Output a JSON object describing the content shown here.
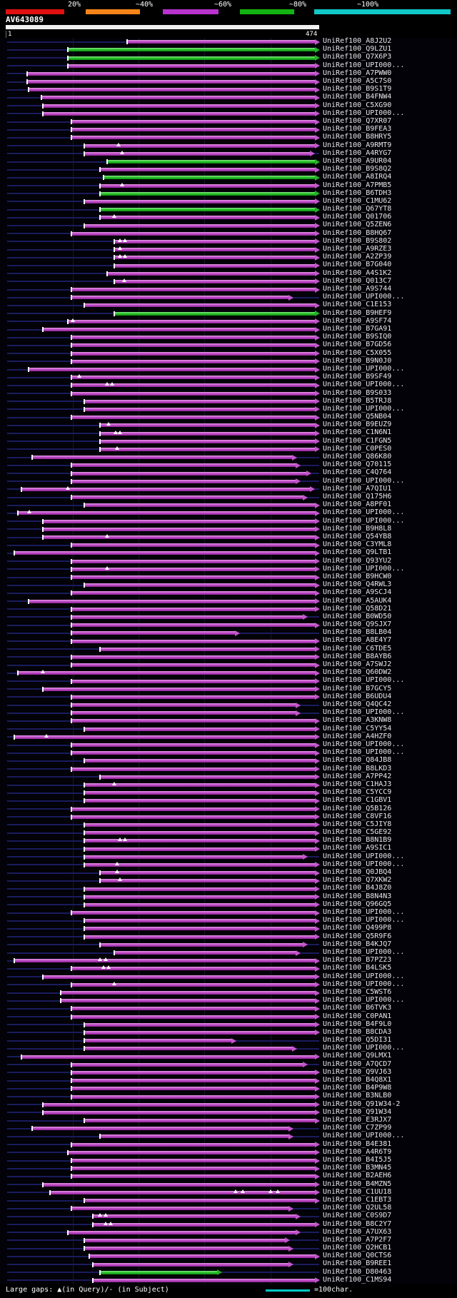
{
  "chart_data": {
    "type": "bar",
    "subtype": "blast-graphical-overview-alignment-spans",
    "title": "AV643089",
    "xlim": [
      1,
      474
    ],
    "x_axis": {
      "start_label": "1",
      "end_label": "474"
    },
    "identity_scale": {
      "labels": [
        "20%",
        "~40%",
        "~60%",
        "~80%",
        "~100%"
      ],
      "colors": [
        "#e01010",
        "#f78418",
        "#b832cc",
        "#12b412",
        "#10c8c8"
      ]
    },
    "bar_colors": {
      "m": "#c455cc",
      "g": "#1fb41f"
    },
    "legend": {
      "large_gaps": "Large gaps: ▲(in Query)/- (in Subject)",
      "scale_marker": "=100char.",
      "scale_marker_color": "#00c8c8"
    },
    "rows": [
      {
        "l": "UniRef100_A8J2U2",
        "s": 183,
        "e": 474,
        "c": "m"
      },
      {
        "l": "UniRef100_Q9LZU1",
        "s": 93,
        "e": 474,
        "c": "g"
      },
      {
        "l": "UniRef100_Q7X6P3",
        "s": 93,
        "e": 474,
        "c": "g"
      },
      {
        "l": "UniRef100_UPI000...",
        "s": 93,
        "e": 474,
        "c": "m"
      },
      {
        "l": "UniRef100_A7PWW0",
        "s": 31,
        "e": 474,
        "c": "m"
      },
      {
        "l": "UniRef100_A5C7S0",
        "s": 31,
        "e": 474,
        "c": "m"
      },
      {
        "l": "UniRef100_B9S1T9",
        "s": 33,
        "e": 474,
        "c": "m"
      },
      {
        "l": "UniRef100_B4FNW4",
        "s": 53,
        "e": 474,
        "c": "m"
      },
      {
        "l": "UniRef100_C5XG90",
        "s": 55,
        "e": 474,
        "c": "m"
      },
      {
        "l": "UniRef100_UPI000...",
        "s": 55,
        "e": 474,
        "c": "m"
      },
      {
        "l": "UniRef100_Q7XR07",
        "s": 98,
        "e": 474,
        "c": "m"
      },
      {
        "l": "UniRef100_B9FEA3",
        "s": 98,
        "e": 474,
        "c": "m"
      },
      {
        "l": "UniRef100_B8HRY5",
        "s": 98,
        "e": 474,
        "c": "m"
      },
      {
        "l": "UniRef100_A9RMT9",
        "s": 118,
        "e": 474,
        "c": "m",
        "g": [
          170
        ]
      },
      {
        "l": "UniRef100_A4RYG7",
        "s": 118,
        "e": 466,
        "c": "m",
        "g": [
          175
        ]
      },
      {
        "l": "UniRef100_A9UR04",
        "s": 152,
        "e": 474,
        "c": "g"
      },
      {
        "l": "UniRef100_B9S8Q2",
        "s": 142,
        "e": 474,
        "c": "m"
      },
      {
        "l": "UniRef100_A8IRQ4",
        "s": 147,
        "e": 474,
        "c": "g"
      },
      {
        "l": "UniRef100_A7PMB5",
        "s": 142,
        "e": 474,
        "c": "m",
        "g": [
          175
        ]
      },
      {
        "l": "UniRef100_B6TDH3",
        "s": 142,
        "e": 474,
        "c": "g"
      },
      {
        "l": "UniRef100_C1MU62",
        "s": 118,
        "e": 474,
        "c": "m"
      },
      {
        "l": "UniRef100_Q67YT8",
        "s": 142,
        "e": 474,
        "c": "g"
      },
      {
        "l": "UniRef100_Q01706",
        "s": 142,
        "e": 474,
        "c": "m",
        "g": [
          163
        ]
      },
      {
        "l": "UniRef100_Q5ZEN6",
        "s": 118,
        "e": 474,
        "c": "m"
      },
      {
        "l": "UniRef100_B8HQ67",
        "s": 98,
        "e": 474,
        "c": "m"
      },
      {
        "l": "UniRef100_B9S802",
        "s": 163,
        "e": 474,
        "c": "m",
        "g": [
          172,
          180
        ]
      },
      {
        "l": "UniRef100_A9RZE3",
        "s": 163,
        "e": 474,
        "c": "m",
        "g": [
          172
        ]
      },
      {
        "l": "UniRef100_A2ZP39",
        "s": 163,
        "e": 474,
        "c": "m",
        "g": [
          172,
          180
        ]
      },
      {
        "l": "UniRef100_B7G040",
        "s": 163,
        "e": 474,
        "c": "m"
      },
      {
        "l": "UniRef100_A4S1K2",
        "s": 152,
        "e": 474,
        "c": "m"
      },
      {
        "l": "UniRef100_Q013C7",
        "s": 163,
        "e": 474,
        "c": "m",
        "g": [
          178
        ]
      },
      {
        "l": "UniRef100_A9S744",
        "s": 98,
        "e": 474,
        "c": "m"
      },
      {
        "l": "UniRef100_UPI000...",
        "s": 98,
        "e": 434,
        "c": "m"
      },
      {
        "l": "UniRef100_C1E153",
        "s": 118,
        "e": 474,
        "c": "m"
      },
      {
        "l": "UniRef100_B9HEF9",
        "s": 163,
        "e": 474,
        "c": "g"
      },
      {
        "l": "UniRef100_A9SF74",
        "s": 93,
        "e": 474,
        "c": "m",
        "g": [
          100
        ]
      },
      {
        "l": "UniRef100_B7GA91",
        "s": 55,
        "e": 474,
        "c": "m"
      },
      {
        "l": "UniRef100_B9SIQ0",
        "s": 98,
        "e": 474,
        "c": "m"
      },
      {
        "l": "UniRef100_B7GD56",
        "s": 98,
        "e": 474,
        "c": "m"
      },
      {
        "l": "UniRef100_C5X055",
        "s": 98,
        "e": 474,
        "c": "m"
      },
      {
        "l": "UniRef100_B9N0J0",
        "s": 98,
        "e": 474,
        "c": "m"
      },
      {
        "l": "UniRef100_UPI000...",
        "s": 33,
        "e": 474,
        "c": "m"
      },
      {
        "l": "UniRef100_B9SF49",
        "s": 98,
        "e": 474,
        "c": "m",
        "g": [
          110
        ]
      },
      {
        "l": "UniRef100_UPI000...",
        "s": 98,
        "e": 474,
        "c": "m",
        "g": [
          152,
          160
        ]
      },
      {
        "l": "UniRef100_B9S033",
        "s": 98,
        "e": 474,
        "c": "m"
      },
      {
        "l": "UniRef100_B5TRJ8",
        "s": 118,
        "e": 474,
        "c": "m"
      },
      {
        "l": "UniRef100_UPI000...",
        "s": 118,
        "e": 474,
        "c": "m"
      },
      {
        "l": "UniRef100_Q5NB04",
        "s": 98,
        "e": 474,
        "c": "m"
      },
      {
        "l": "UniRef100_B9EUZ9",
        "s": 142,
        "e": 474,
        "c": "m",
        "g": [
          155
        ]
      },
      {
        "l": "UniRef100_C1N6N1",
        "s": 142,
        "e": 474,
        "c": "m",
        "g": [
          165,
          172
        ]
      },
      {
        "l": "UniRef100_C1FGN5",
        "s": 142,
        "e": 474,
        "c": "m"
      },
      {
        "l": "UniRef100_C0PES0",
        "s": 142,
        "e": 474,
        "c": "m",
        "g": [
          168
        ]
      },
      {
        "l": "UniRef100_Q86K80",
        "s": 39,
        "e": 439,
        "c": "m"
      },
      {
        "l": "UniRef100_Q70115",
        "s": 98,
        "e": 445,
        "c": "m"
      },
      {
        "l": "UniRef100_C4Q764",
        "s": 98,
        "e": 461,
        "c": "m"
      },
      {
        "l": "UniRef100_UPI000...",
        "s": 98,
        "e": 445,
        "c": "m"
      },
      {
        "l": "UniRef100_A7QIU1",
        "s": 23,
        "e": 466,
        "c": "m",
        "g": [
          93
        ]
      },
      {
        "l": "UniRef100_Q175H6",
        "s": 98,
        "e": 456,
        "c": "m"
      },
      {
        "l": "UniRef100_A8PF01",
        "s": 118,
        "e": 474,
        "c": "m"
      },
      {
        "l": "UniRef100_UPI000...",
        "s": 17,
        "e": 474,
        "c": "m",
        "g": [
          35
        ]
      },
      {
        "l": "UniRef100_UPI000...",
        "s": 55,
        "e": 474,
        "c": "m"
      },
      {
        "l": "UniRef100_B9H8L8",
        "s": 55,
        "e": 474,
        "c": "m"
      },
      {
        "l": "UniRef100_Q54YB8",
        "s": 55,
        "e": 474,
        "c": "m",
        "g": [
          152
        ]
      },
      {
        "l": "UniRef100_C3YML8",
        "s": 98,
        "e": 474,
        "c": "m"
      },
      {
        "l": "UniRef100_Q9LTB1",
        "s": 12,
        "e": 474,
        "c": "m"
      },
      {
        "l": "UniRef100_Q93YU2",
        "s": 98,
        "e": 474,
        "c": "m"
      },
      {
        "l": "UniRef100_UPI000...",
        "s": 98,
        "e": 474,
        "c": "m",
        "g": [
          152
        ]
      },
      {
        "l": "UniRef100_B9HCW0",
        "s": 98,
        "e": 474,
        "c": "m"
      },
      {
        "l": "UniRef100_Q4RWL3",
        "s": 118,
        "e": 474,
        "c": "m"
      },
      {
        "l": "UniRef100_A9SCJ4",
        "s": 98,
        "e": 474,
        "c": "m"
      },
      {
        "l": "UniRef100_A5AUK4",
        "s": 33,
        "e": 474,
        "c": "m"
      },
      {
        "l": "UniRef100_Q58D21",
        "s": 98,
        "e": 474,
        "c": "m"
      },
      {
        "l": "UniRef100_B0WD50",
        "s": 98,
        "e": 456,
        "c": "m"
      },
      {
        "l": "UniRef100_Q9SJX7",
        "s": 98,
        "e": 474,
        "c": "m"
      },
      {
        "l": "UniRef100_B8LB04",
        "s": 98,
        "e": 353,
        "c": "m"
      },
      {
        "l": "UniRef100_A8E4Y7",
        "s": 98,
        "e": 474,
        "c": "m"
      },
      {
        "l": "UniRef100_C6TDE5",
        "s": 142,
        "e": 474,
        "c": "m"
      },
      {
        "l": "UniRef100_B8AYB6",
        "s": 98,
        "e": 474,
        "c": "m"
      },
      {
        "l": "UniRef100_A7SWJ2",
        "s": 98,
        "e": 474,
        "c": "m"
      },
      {
        "l": "UniRef100_Q60DW2",
        "s": 17,
        "e": 474,
        "c": "m",
        "g": [
          55
        ]
      },
      {
        "l": "UniRef100_UPI000...",
        "s": 98,
        "e": 474,
        "c": "m"
      },
      {
        "l": "UniRef100_B7GCY5",
        "s": 55,
        "e": 474,
        "c": "m"
      },
      {
        "l": "UniRef100_B6UDU4",
        "s": 98,
        "e": 474,
        "c": "m"
      },
      {
        "l": "UniRef100_Q4QC42",
        "s": 98,
        "e": 445,
        "c": "m"
      },
      {
        "l": "UniRef100_UPI000...",
        "s": 98,
        "e": 445,
        "c": "m"
      },
      {
        "l": "UniRef100_A3KNW8",
        "s": 98,
        "e": 474,
        "c": "m"
      },
      {
        "l": "UniRef100_C5YY54",
        "s": 118,
        "e": 474,
        "c": "m"
      },
      {
        "l": "UniRef100_A4HZF0",
        "s": 12,
        "e": 474,
        "c": "m",
        "g": [
          60
        ]
      },
      {
        "l": "UniRef100_UPI000...",
        "s": 98,
        "e": 474,
        "c": "m"
      },
      {
        "l": "UniRef100_UPI000...",
        "s": 98,
        "e": 474,
        "c": "m"
      },
      {
        "l": "UniRef100_Q84JB8",
        "s": 118,
        "e": 474,
        "c": "m"
      },
      {
        "l": "UniRef100_B8LKD3",
        "s": 98,
        "e": 474,
        "c": "m"
      },
      {
        "l": "UniRef100_A7PP42",
        "s": 142,
        "e": 474,
        "c": "m"
      },
      {
        "l": "UniRef100_C1HAJ3",
        "s": 118,
        "e": 474,
        "c": "m",
        "g": [
          163
        ]
      },
      {
        "l": "UniRef100_C5YCC9",
        "s": 118,
        "e": 474,
        "c": "m"
      },
      {
        "l": "UniRef100_C1GBV1",
        "s": 118,
        "e": 474,
        "c": "m"
      },
      {
        "l": "UniRef100_Q5B126",
        "s": 98,
        "e": 474,
        "c": "m"
      },
      {
        "l": "UniRef100_C8VF16",
        "s": 98,
        "e": 474,
        "c": "m"
      },
      {
        "l": "UniRef100_C5JIY8",
        "s": 118,
        "e": 474,
        "c": "m"
      },
      {
        "l": "UniRef100_C5GE92",
        "s": 118,
        "e": 474,
        "c": "m"
      },
      {
        "l": "UniRef100_B8N1B9",
        "s": 118,
        "e": 474,
        "c": "m",
        "g": [
          172,
          180
        ]
      },
      {
        "l": "UniRef100_A9SIC1",
        "s": 118,
        "e": 474,
        "c": "m"
      },
      {
        "l": "UniRef100_UPI000...",
        "s": 118,
        "e": 456,
        "c": "m"
      },
      {
        "l": "UniRef100_UPI000...",
        "s": 118,
        "e": 474,
        "c": "m",
        "g": [
          168
        ]
      },
      {
        "l": "UniRef100_Q0JBQ4",
        "s": 142,
        "e": 474,
        "c": "m",
        "g": [
          168
        ]
      },
      {
        "l": "UniRef100_Q7XKW2",
        "s": 142,
        "e": 474,
        "c": "m",
        "g": [
          172
        ]
      },
      {
        "l": "UniRef100_B4J8Z0",
        "s": 118,
        "e": 474,
        "c": "m"
      },
      {
        "l": "UniRef100_B8N4N3",
        "s": 118,
        "e": 474,
        "c": "m"
      },
      {
        "l": "UniRef100_Q96GQ5",
        "s": 118,
        "e": 474,
        "c": "m"
      },
      {
        "l": "UniRef100_UPI000...",
        "s": 98,
        "e": 474,
        "c": "m"
      },
      {
        "l": "UniRef100_UPI000...",
        "s": 118,
        "e": 474,
        "c": "m"
      },
      {
        "l": "UniRef100_Q499P8",
        "s": 118,
        "e": 474,
        "c": "m"
      },
      {
        "l": "UniRef100_Q5R9F6",
        "s": 118,
        "e": 474,
        "c": "m"
      },
      {
        "l": "UniRef100_B4KJQ7",
        "s": 142,
        "e": 456,
        "c": "m"
      },
      {
        "l": "UniRef100_UPI000...",
        "s": 163,
        "e": 445,
        "c": "m"
      },
      {
        "l": "UniRef100_B7PZ23",
        "s": 12,
        "e": 474,
        "c": "m",
        "g": [
          142,
          150
        ]
      },
      {
        "l": "UniRef100_B4LSK5",
        "s": 98,
        "e": 474,
        "c": "m",
        "g": [
          147,
          155
        ]
      },
      {
        "l": "UniRef100_UPI000...",
        "s": 55,
        "e": 474,
        "c": "m"
      },
      {
        "l": "UniRef100_UPI000...",
        "s": 98,
        "e": 474,
        "c": "m",
        "g": [
          163
        ]
      },
      {
        "l": "UniRef100_C5WST6",
        "s": 82,
        "e": 474,
        "c": "m"
      },
      {
        "l": "UniRef100_UPI000...",
        "s": 82,
        "e": 474,
        "c": "m"
      },
      {
        "l": "UniRef100_B6TVK3",
        "s": 98,
        "e": 474,
        "c": "m"
      },
      {
        "l": "UniRef100_C0PAN1",
        "s": 98,
        "e": 474,
        "c": "m"
      },
      {
        "l": "UniRef100_B4F9L0",
        "s": 118,
        "e": 474,
        "c": "m"
      },
      {
        "l": "UniRef100_B8CDA3",
        "s": 118,
        "e": 474,
        "c": "m"
      },
      {
        "l": "UniRef100_Q5DI31",
        "s": 118,
        "e": 347,
        "c": "m"
      },
      {
        "l": "UniRef100_UPI000...",
        "s": 118,
        "e": 439,
        "c": "m"
      },
      {
        "l": "UniRef100_Q9LMX1",
        "s": 23,
        "e": 474,
        "c": "m"
      },
      {
        "l": "UniRef100_A7QCD7",
        "s": 98,
        "e": 456,
        "c": "m"
      },
      {
        "l": "UniRef100_Q9VJ63",
        "s": 98,
        "e": 474,
        "c": "m"
      },
      {
        "l": "UniRef100_B4Q8X1",
        "s": 98,
        "e": 474,
        "c": "m"
      },
      {
        "l": "UniRef100_B4P9W8",
        "s": 98,
        "e": 474,
        "c": "m"
      },
      {
        "l": "UniRef100_B3NLB0",
        "s": 98,
        "e": 474,
        "c": "m"
      },
      {
        "l": "UniRef100_Q91W34-2",
        "s": 55,
        "e": 474,
        "c": "m"
      },
      {
        "l": "UniRef100_Q91W34",
        "s": 55,
        "e": 474,
        "c": "m"
      },
      {
        "l": "UniRef100_E3RJX7",
        "s": 118,
        "e": 474,
        "c": "m"
      },
      {
        "l": "UniRef100_C7ZP99",
        "s": 39,
        "e": 434,
        "c": "m"
      },
      {
        "l": "UniRef100_UPI000...",
        "s": 142,
        "e": 434,
        "c": "m"
      },
      {
        "l": "UniRef100_B4E381",
        "s": 98,
        "e": 474,
        "c": "m"
      },
      {
        "l": "UniRef100_A4R6T9",
        "s": 93,
        "e": 474,
        "c": "m"
      },
      {
        "l": "UniRef100_B4I5J5",
        "s": 98,
        "e": 474,
        "c": "m"
      },
      {
        "l": "UniRef100_B3MN45",
        "s": 98,
        "e": 474,
        "c": "m"
      },
      {
        "l": "UniRef100_B2AEH6",
        "s": 98,
        "e": 474,
        "c": "m"
      },
      {
        "l": "UniRef100_B4MZN5",
        "s": 55,
        "e": 474,
        "c": "m"
      },
      {
        "l": "UniRef100_C1UU18",
        "s": 66,
        "e": 474,
        "c": "m",
        "g": [
          347,
          358,
          400,
          411
        ]
      },
      {
        "l": "UniRef100_C1EBT3",
        "s": 118,
        "e": 474,
        "c": "m"
      },
      {
        "l": "UniRef100_Q2UL58",
        "s": 98,
        "e": 434,
        "c": "m"
      },
      {
        "l": "UniRef100_C0S9D7",
        "s": 131,
        "e": 445,
        "c": "m",
        "g": [
          142,
          150
        ]
      },
      {
        "l": "UniRef100_B8C2Y7",
        "s": 131,
        "e": 474,
        "c": "m",
        "g": [
          150,
          158
        ]
      },
      {
        "l": "UniRef100_A7UX63",
        "s": 93,
        "e": 445,
        "c": "m"
      },
      {
        "l": "UniRef100_A7P2F7",
        "s": 118,
        "e": 429,
        "c": "m"
      },
      {
        "l": "UniRef100_Q2HCB1",
        "s": 118,
        "e": 434,
        "c": "m"
      },
      {
        "l": "UniRef100_Q0CTS6",
        "s": 125,
        "e": 474,
        "c": "m"
      },
      {
        "l": "UniRef100_B9REE1",
        "s": 131,
        "e": 434,
        "c": "m"
      },
      {
        "l": "UniRef100_D80463",
        "s": 142,
        "e": 326,
        "c": "g"
      },
      {
        "l": "UniRef100_C1MS94",
        "s": 131,
        "e": 474,
        "c": "m"
      }
    ]
  }
}
